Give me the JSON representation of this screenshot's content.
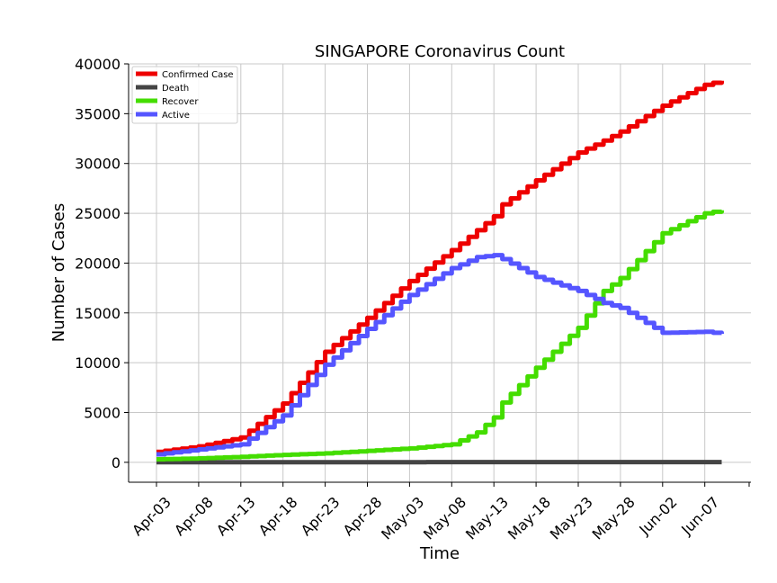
{
  "chart_data": {
    "type": "line",
    "title": "SINGAPORE Coronavirus Count",
    "xlabel": "Time",
    "ylabel": "Number of Cases",
    "ylim": [
      -2000,
      40000
    ],
    "grid": true,
    "legend_position": "top-left",
    "x_tick_labels": [
      "Apr-03",
      "Apr-08",
      "Apr-13",
      "Apr-18",
      "Apr-23",
      "Apr-28",
      "May-03",
      "May-08",
      "May-13",
      "May-18",
      "May-23",
      "May-28",
      "Jun-02",
      "Jun-07"
    ],
    "y_ticks": [
      0,
      5000,
      10000,
      15000,
      20000,
      25000,
      30000,
      35000,
      40000
    ],
    "x": [
      "Apr-03",
      "Apr-08",
      "Apr-13",
      "Apr-18",
      "Apr-23",
      "Apr-28",
      "May-03",
      "May-08",
      "May-11",
      "May-13",
      "May-14",
      "May-18",
      "May-23",
      "May-26",
      "May-28",
      "Jun-02",
      "Jun-07",
      "Jun-09"
    ],
    "series": [
      {
        "name": "Confirmed Case",
        "color": "#ee0000",
        "values": [
          1050,
          1600,
          2500,
          5900,
          11100,
          14500,
          18200,
          21300,
          23300,
          24700,
          25900,
          28300,
          31100,
          32300,
          33200,
          35800,
          37900,
          38300
        ]
      },
      {
        "name": "Death",
        "color": "#444444",
        "values": [
          5,
          6,
          7,
          11,
          12,
          14,
          18,
          20,
          20,
          21,
          22,
          23,
          23,
          23,
          23,
          24,
          25,
          25
        ]
      },
      {
        "name": "Recover",
        "color": "#44dd00",
        "values": [
          300,
          400,
          550,
          750,
          900,
          1150,
          1400,
          1800,
          3000,
          4500,
          6000,
          9500,
          13500,
          17200,
          18500,
          23000,
          25000,
          25300
        ]
      },
      {
        "name": "Active",
        "color": "#5555ff",
        "values": [
          800,
          1300,
          1800,
          4700,
          9800,
          13400,
          16800,
          19500,
          20600,
          20800,
          20400,
          18600,
          17200,
          16000,
          15500,
          13000,
          13100,
          12900
        ]
      }
    ]
  }
}
